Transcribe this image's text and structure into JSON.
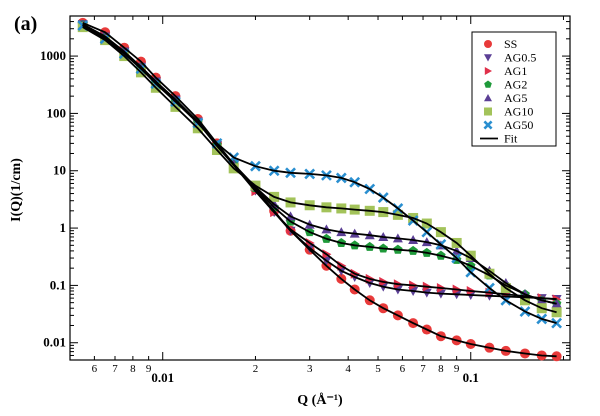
{
  "panel_label": "(a)",
  "chart_data": {
    "type": "scatter",
    "xlabel": "Q (Å⁻¹)",
    "ylabel": "I(Q)(1/cm)",
    "xscale": "log",
    "yscale": "log",
    "xlim": [
      0.005,
      0.21
    ],
    "ylim": [
      0.005,
      5000
    ],
    "legend_position": "top-right",
    "x_tick_labels": [
      {
        "value": 0.006,
        "label": "6"
      },
      {
        "value": 0.007,
        "label": "7"
      },
      {
        "value": 0.008,
        "label": "8"
      },
      {
        "value": 0.009,
        "label": "9"
      },
      {
        "value": 0.01,
        "label": "0.01",
        "major": true
      },
      {
        "value": 0.02,
        "label": "2"
      },
      {
        "value": 0.03,
        "label": "3"
      },
      {
        "value": 0.04,
        "label": "4"
      },
      {
        "value": 0.05,
        "label": "5"
      },
      {
        "value": 0.06,
        "label": "6"
      },
      {
        "value": 0.07,
        "label": "7"
      },
      {
        "value": 0.08,
        "label": "8"
      },
      {
        "value": 0.09,
        "label": "9"
      },
      {
        "value": 0.1,
        "label": "0.1",
        "major": true
      }
    ],
    "y_tick_labels": [
      {
        "value": 0.01,
        "label": "0.01"
      },
      {
        "value": 0.1,
        "label": "0.1"
      },
      {
        "value": 1,
        "label": "1"
      },
      {
        "value": 10,
        "label": "10"
      },
      {
        "value": 100,
        "label": "100"
      },
      {
        "value": 1000,
        "label": "1000"
      }
    ],
    "series": [
      {
        "name": "SS",
        "marker": "circle",
        "color": "#e83a3a",
        "q": [
          0.0055,
          0.0065,
          0.0075,
          0.0085,
          0.0095,
          0.011,
          0.013,
          0.015,
          0.017,
          0.02,
          0.023,
          0.026,
          0.03,
          0.034,
          0.038,
          0.042,
          0.047,
          0.052,
          0.058,
          0.065,
          0.072,
          0.08,
          0.09,
          0.1,
          0.115,
          0.13,
          0.15,
          0.17,
          0.19
        ],
        "I": [
          3800,
          2600,
          1400,
          800,
          420,
          200,
          80,
          30,
          13,
          4.8,
          2.0,
          0.9,
          0.42,
          0.22,
          0.13,
          0.085,
          0.055,
          0.04,
          0.03,
          0.022,
          0.017,
          0.013,
          0.011,
          0.0095,
          0.0082,
          0.0072,
          0.0065,
          0.006,
          0.0058
        ]
      },
      {
        "name": "AG0.5",
        "marker": "triangle-down",
        "color": "#5b3f95",
        "q": [
          0.0055,
          0.0065,
          0.0075,
          0.0085,
          0.0095,
          0.011,
          0.013,
          0.015,
          0.017,
          0.02,
          0.023,
          0.026,
          0.03,
          0.034,
          0.038,
          0.042,
          0.047,
          0.052,
          0.058,
          0.065,
          0.072,
          0.08,
          0.09,
          0.1,
          0.115,
          0.13,
          0.15,
          0.17,
          0.19
        ],
        "I": [
          3600,
          2200,
          1200,
          650,
          360,
          175,
          72,
          28,
          13,
          4.5,
          1.9,
          0.9,
          0.45,
          0.27,
          0.18,
          0.14,
          0.11,
          0.095,
          0.085,
          0.08,
          0.075,
          0.072,
          0.07,
          0.068,
          0.066,
          0.064,
          0.062,
          0.06,
          0.058
        ]
      },
      {
        "name": "AG1",
        "marker": "triangle-right",
        "color": "#e0304a",
        "q": [
          0.0055,
          0.0065,
          0.0075,
          0.0085,
          0.0095,
          0.011,
          0.013,
          0.015,
          0.017,
          0.02,
          0.023,
          0.026,
          0.03,
          0.034,
          0.038,
          0.042,
          0.047,
          0.052,
          0.058,
          0.065,
          0.072,
          0.08,
          0.09,
          0.1,
          0.115,
          0.13,
          0.15,
          0.17,
          0.19
        ],
        "I": [
          3500,
          2100,
          1150,
          620,
          340,
          165,
          70,
          27,
          12.5,
          4.4,
          1.9,
          0.95,
          0.55,
          0.35,
          0.22,
          0.16,
          0.13,
          0.115,
          0.105,
          0.1,
          0.095,
          0.09,
          0.085,
          0.08,
          0.075,
          0.07,
          0.065,
          0.06,
          0.057
        ]
      },
      {
        "name": "AG2",
        "marker": "pentagon",
        "color": "#1f9a3a",
        "q": [
          0.0055,
          0.0065,
          0.0075,
          0.0085,
          0.0095,
          0.011,
          0.013,
          0.015,
          0.017,
          0.02,
          0.023,
          0.026,
          0.03,
          0.034,
          0.038,
          0.042,
          0.047,
          0.052,
          0.058,
          0.065,
          0.072,
          0.08,
          0.09,
          0.1,
          0.115,
          0.13,
          0.15,
          0.17,
          0.19
        ],
        "I": [
          3500,
          2100,
          1150,
          620,
          340,
          165,
          70,
          28,
          13,
          5.0,
          2.3,
          1.3,
          0.85,
          0.65,
          0.55,
          0.5,
          0.47,
          0.44,
          0.42,
          0.4,
          0.37,
          0.33,
          0.28,
          0.22,
          0.15,
          0.1,
          0.07,
          0.055,
          0.048
        ]
      },
      {
        "name": "AG5",
        "marker": "triangle-up",
        "color": "#5b3f95",
        "q": [
          0.0055,
          0.0065,
          0.0075,
          0.0085,
          0.0095,
          0.011,
          0.013,
          0.015,
          0.017,
          0.02,
          0.023,
          0.026,
          0.03,
          0.034,
          0.038,
          0.042,
          0.047,
          0.052,
          0.058,
          0.065,
          0.072,
          0.08,
          0.09,
          0.1,
          0.115,
          0.13,
          0.15,
          0.17,
          0.19
        ],
        "I": [
          3500,
          2100,
          1150,
          620,
          340,
          165,
          70,
          28,
          13,
          5.2,
          2.6,
          1.6,
          1.15,
          0.95,
          0.85,
          0.8,
          0.75,
          0.7,
          0.66,
          0.62,
          0.57,
          0.5,
          0.4,
          0.3,
          0.18,
          0.11,
          0.07,
          0.055,
          0.048
        ]
      },
      {
        "name": "AG10",
        "marker": "square",
        "color": "#a3c35a",
        "q": [
          0.0055,
          0.0065,
          0.0075,
          0.0085,
          0.0095,
          0.011,
          0.013,
          0.015,
          0.017,
          0.02,
          0.023,
          0.026,
          0.03,
          0.034,
          0.038,
          0.042,
          0.047,
          0.052,
          0.058,
          0.065,
          0.072,
          0.08,
          0.09,
          0.1,
          0.115,
          0.13,
          0.15,
          0.17,
          0.19
        ],
        "I": [
          3200,
          1900,
          1000,
          520,
          280,
          130,
          55,
          23,
          11,
          5.5,
          3.5,
          2.8,
          2.5,
          2.3,
          2.2,
          2.1,
          2.0,
          1.9,
          1.7,
          1.5,
          1.2,
          0.85,
          0.55,
          0.33,
          0.16,
          0.09,
          0.055,
          0.04,
          0.034
        ]
      },
      {
        "name": "AG50",
        "marker": "cross",
        "color": "#2a8fd0",
        "q": [
          0.0055,
          0.0065,
          0.0075,
          0.0085,
          0.0095,
          0.011,
          0.013,
          0.015,
          0.017,
          0.02,
          0.023,
          0.026,
          0.03,
          0.034,
          0.038,
          0.042,
          0.047,
          0.052,
          0.058,
          0.065,
          0.072,
          0.08,
          0.09,
          0.1,
          0.115,
          0.13,
          0.15,
          0.17,
          0.19
        ],
        "I": [
          3400,
          2000,
          1100,
          600,
          330,
          160,
          68,
          30,
          17,
          12,
          10,
          9.2,
          8.8,
          8.3,
          7.5,
          6.3,
          4.8,
          3.4,
          2.2,
          1.35,
          0.85,
          0.52,
          0.3,
          0.17,
          0.09,
          0.055,
          0.035,
          0.026,
          0.022
        ]
      }
    ],
    "fit": {
      "name": "Fit",
      "color": "#000000"
    }
  }
}
